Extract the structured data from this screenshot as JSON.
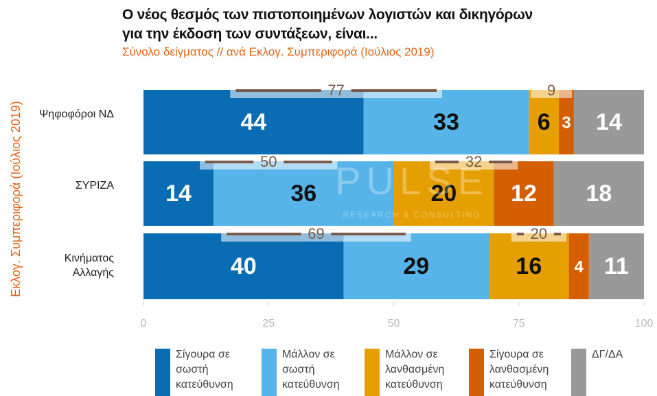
{
  "chart_data": {
    "type": "stacked-barh",
    "title": "Ο νέος θεσμός των πιστοποιημένων λογιστών και δικηγόρων για την έκδοση των συντάξεων, είναι...",
    "subtitle": "Σύνολο δείγματος // ανά Εκλογ. Συμπεριφορά (Ιούλιος 2019)",
    "y_label": "Εκλογ. Συμπεριφορά (Ιούλιος 2019)",
    "watermark": "PULSE",
    "watermark_sub": "RESEARCH & CONSULTING",
    "categories": [
      "Ψηφοφόροι ΝΔ",
      "ΣΥΡΙΖΑ",
      "Κινήματος Αλλαγής"
    ],
    "series": [
      {
        "name": "Σίγουρα σε σωστή κατεύθυνση",
        "color": "#0a6db3",
        "label_color": "#ffffff",
        "values": [
          44,
          14,
          40
        ]
      },
      {
        "name": "Μάλλον σε σωστή κατεύθυνση",
        "color": "#56b4e9",
        "label_color": "#111111",
        "values": [
          33,
          36,
          29
        ]
      },
      {
        "name": "Μάλλον σε λανθασμένη κατεύθυνση",
        "color": "#e69f00",
        "label_color": "#111111",
        "values": [
          6,
          20,
          16
        ]
      },
      {
        "name": "Σίγουρα σε λανθασμένη κατεύθυνση",
        "color": "#d55e00",
        "label_color": "#ffffff",
        "values": [
          3,
          12,
          4
        ]
      },
      {
        "name": "ΔΓ/ΔΑ",
        "color": "#999999",
        "label_color": "#ffffff",
        "values": [
          14,
          18,
          11
        ]
      }
    ],
    "annotations": {
      "right_direction": [
        77,
        50,
        69
      ],
      "wrong_direction": [
        9,
        32,
        20
      ]
    },
    "xlim": [
      0,
      100
    ],
    "xticks": [
      0,
      25,
      50,
      75,
      100
    ]
  }
}
